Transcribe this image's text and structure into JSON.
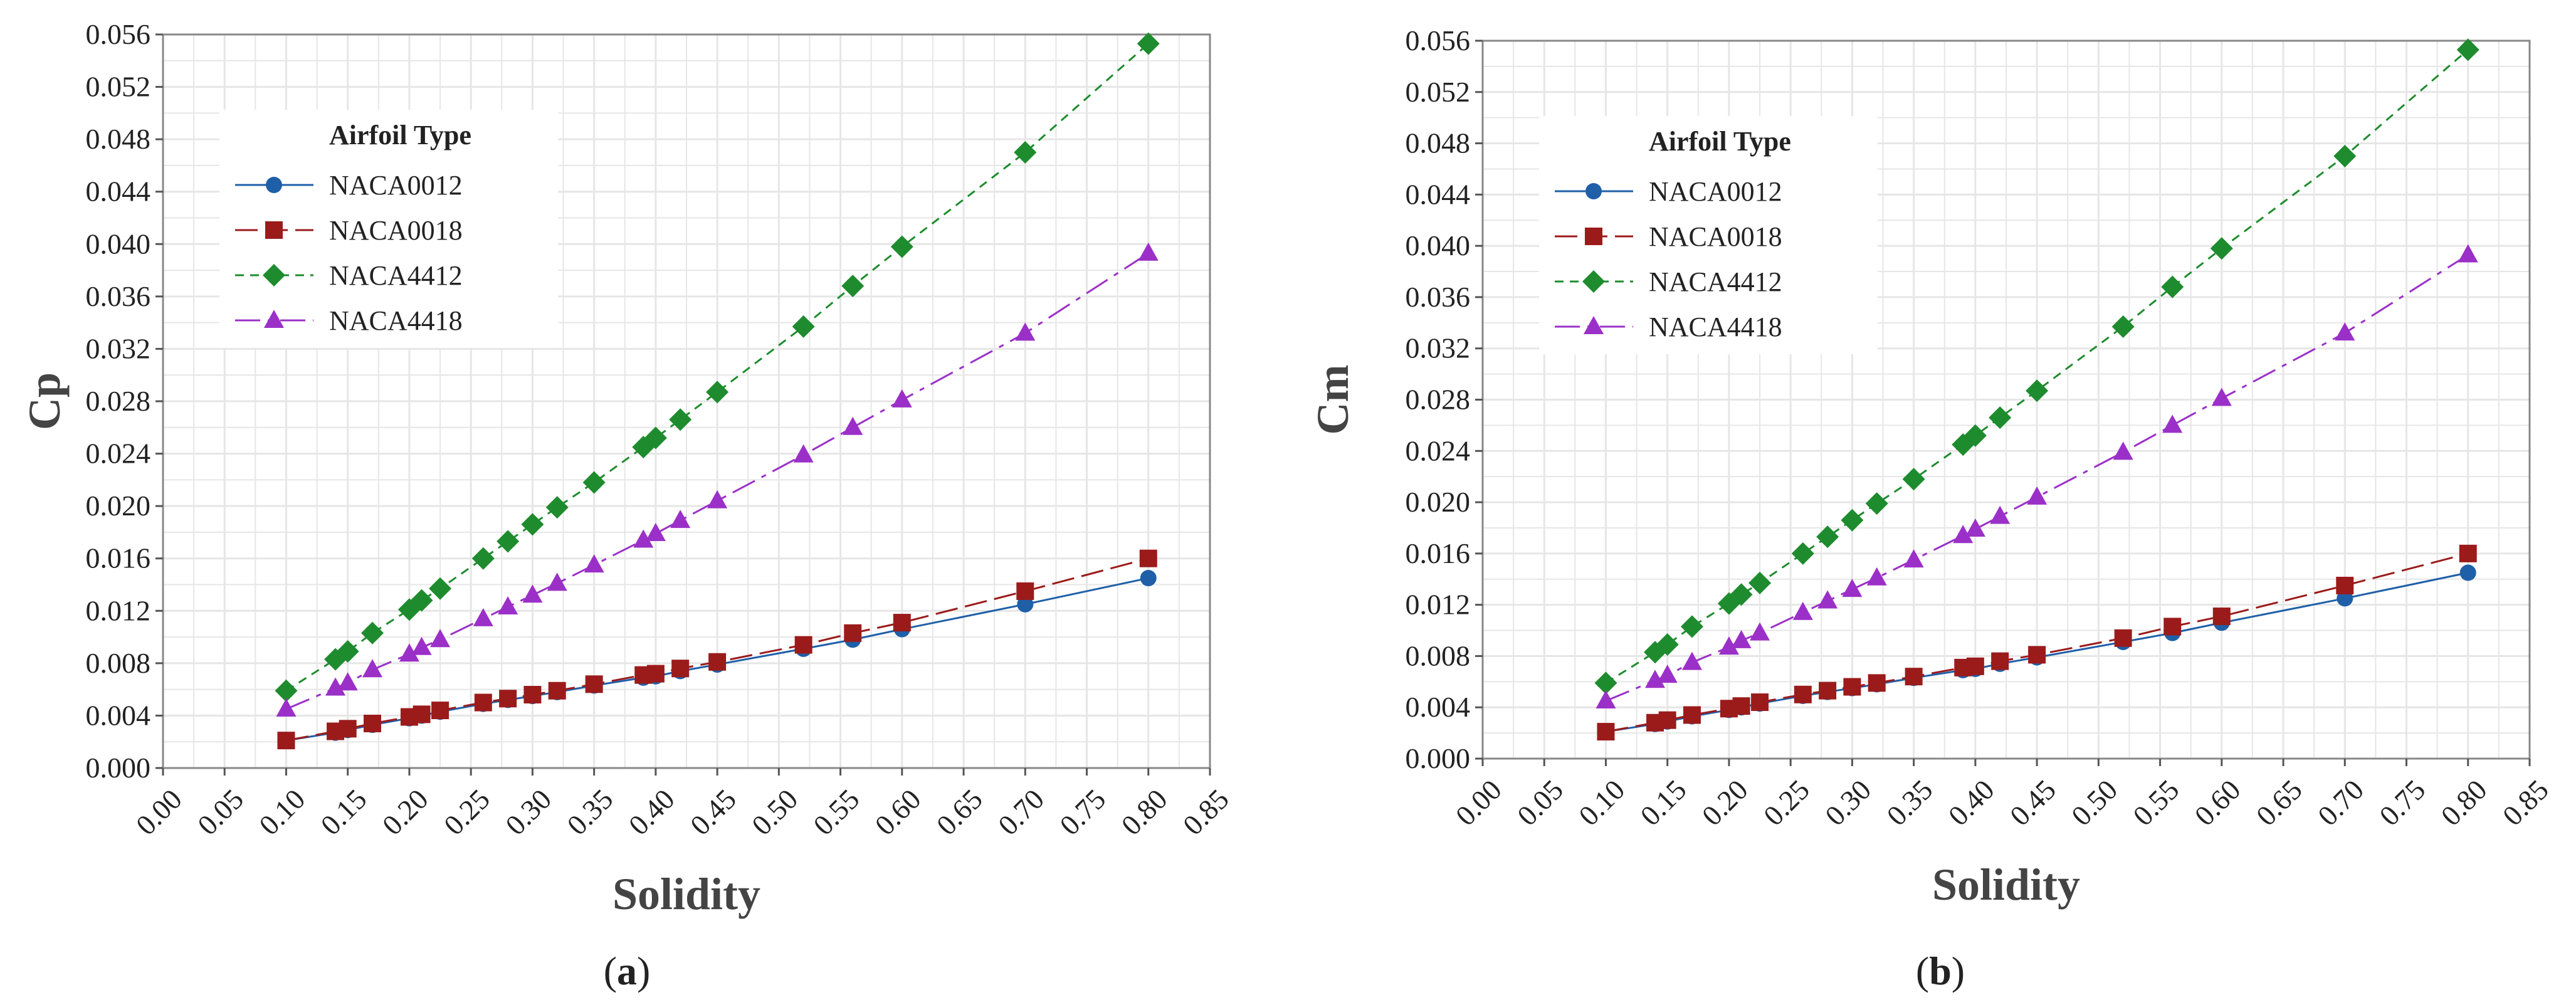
{
  "colors": {
    "NACA0012": "#1f5fa8",
    "NACA0018": "#9b1b1b",
    "NACA4412": "#1e8c2e",
    "NACA4418": "#9b30c8",
    "grid": "#e6e6e6",
    "frame": "#888888"
  },
  "chart_data": [
    {
      "type": "line",
      "panel": "a",
      "xlabel": "Solidity",
      "ylabel": "Cp",
      "xlim": [
        0.0,
        0.85
      ],
      "ylim": [
        0.0,
        0.056
      ],
      "grid": true,
      "legend_title": "Airfoil Type",
      "legend_position": "top-left",
      "x_ticks": [
        "0.00",
        "0.05",
        "0.10",
        "0.15",
        "0.20",
        "0.25",
        "0.30",
        "0.35",
        "0.40",
        "0.45",
        "0.50",
        "0.55",
        "0.60",
        "0.65",
        "0.70",
        "0.75",
        "0.80",
        "0.85"
      ],
      "y_ticks": [
        "0.000",
        "0.004",
        "0.008",
        "0.012",
        "0.016",
        "0.020",
        "0.024",
        "0.028",
        "0.032",
        "0.036",
        "0.040",
        "0.044",
        "0.048",
        "0.052",
        "0.056"
      ],
      "series": [
        {
          "name": "NACA0012",
          "marker": "circle",
          "dash": "solid",
          "x": [
            0.1,
            0.14,
            0.15,
            0.17,
            0.2,
            0.21,
            0.225,
            0.26,
            0.28,
            0.3,
            0.32,
            0.35,
            0.39,
            0.4,
            0.42,
            0.45,
            0.52,
            0.56,
            0.6,
            0.7,
            0.8
          ],
          "y": [
            0.0021,
            0.0027,
            0.0029,
            0.0033,
            0.0038,
            0.004,
            0.0043,
            0.0049,
            0.0052,
            0.0055,
            0.0058,
            0.0063,
            0.0069,
            0.007,
            0.0074,
            0.0079,
            0.0091,
            0.0098,
            0.0106,
            0.0125,
            0.0145
          ]
        },
        {
          "name": "NACA0018",
          "marker": "square",
          "dash": "longdash",
          "x": [
            0.1,
            0.14,
            0.15,
            0.17,
            0.2,
            0.21,
            0.225,
            0.26,
            0.28,
            0.3,
            0.32,
            0.35,
            0.39,
            0.4,
            0.42,
            0.45,
            0.52,
            0.56,
            0.6,
            0.7,
            0.8
          ],
          "y": [
            0.0021,
            0.0028,
            0.003,
            0.0034,
            0.0039,
            0.0041,
            0.0044,
            0.005,
            0.0053,
            0.0056,
            0.0059,
            0.0064,
            0.0071,
            0.0072,
            0.0076,
            0.0081,
            0.0094,
            0.0103,
            0.0111,
            0.0135,
            0.016
          ]
        },
        {
          "name": "NACA4412",
          "marker": "diamond",
          "dash": "dashed",
          "x": [
            0.1,
            0.14,
            0.15,
            0.17,
            0.2,
            0.21,
            0.225,
            0.26,
            0.28,
            0.3,
            0.32,
            0.35,
            0.39,
            0.4,
            0.42,
            0.45,
            0.52,
            0.56,
            0.6,
            0.7,
            0.8
          ],
          "y": [
            0.0059,
            0.0083,
            0.0089,
            0.0103,
            0.0121,
            0.0128,
            0.0137,
            0.016,
            0.0173,
            0.0186,
            0.0199,
            0.0218,
            0.0245,
            0.0252,
            0.0266,
            0.0287,
            0.0337,
            0.0368,
            0.0398,
            0.047,
            0.0553
          ]
        },
        {
          "name": "NACA4418",
          "marker": "triangle",
          "dash": "dashdot",
          "x": [
            0.1,
            0.14,
            0.15,
            0.17,
            0.2,
            0.21,
            0.225,
            0.26,
            0.28,
            0.3,
            0.32,
            0.35,
            0.39,
            0.4,
            0.42,
            0.45,
            0.52,
            0.56,
            0.6,
            0.7,
            0.8
          ],
          "y": [
            0.0045,
            0.0061,
            0.0065,
            0.0075,
            0.0087,
            0.0092,
            0.0098,
            0.0114,
            0.0123,
            0.0132,
            0.0141,
            0.0155,
            0.0174,
            0.0179,
            0.0189,
            0.0204,
            0.0239,
            0.026,
            0.0281,
            0.0332,
            0.0393
          ]
        }
      ]
    },
    {
      "type": "line",
      "panel": "b",
      "xlabel": "Solidity",
      "ylabel": "Cm",
      "xlim": [
        0.0,
        0.85
      ],
      "ylim": [
        0.0,
        0.056
      ],
      "grid": true,
      "legend_title": "Airfoil Type",
      "legend_position": "top-left",
      "x_ticks": [
        "0.00",
        "0.05",
        "0.10",
        "0.15",
        "0.20",
        "0.25",
        "0.30",
        "0.35",
        "0.40",
        "0.45",
        "0.50",
        "0.55",
        "0.60",
        "0.65",
        "0.70",
        "0.75",
        "0.80",
        "0.85"
      ],
      "y_ticks": [
        "0.000",
        "0.004",
        "0.008",
        "0.012",
        "0.016",
        "0.020",
        "0.024",
        "0.028",
        "0.032",
        "0.036",
        "0.040",
        "0.044",
        "0.048",
        "0.052",
        "0.056"
      ],
      "series": [
        {
          "name": "NACA0012",
          "marker": "circle",
          "dash": "solid",
          "x": [
            0.1,
            0.14,
            0.15,
            0.17,
            0.2,
            0.21,
            0.225,
            0.26,
            0.28,
            0.3,
            0.32,
            0.35,
            0.39,
            0.4,
            0.42,
            0.45,
            0.52,
            0.56,
            0.6,
            0.7,
            0.8
          ],
          "y": [
            0.0021,
            0.0027,
            0.0029,
            0.0033,
            0.0038,
            0.004,
            0.0043,
            0.0049,
            0.0052,
            0.0055,
            0.0058,
            0.0063,
            0.0069,
            0.007,
            0.0074,
            0.0079,
            0.0091,
            0.0098,
            0.0106,
            0.0125,
            0.0145
          ]
        },
        {
          "name": "NACA0018",
          "marker": "square",
          "dash": "longdash",
          "x": [
            0.1,
            0.14,
            0.15,
            0.17,
            0.2,
            0.21,
            0.225,
            0.26,
            0.28,
            0.3,
            0.32,
            0.35,
            0.39,
            0.4,
            0.42,
            0.45,
            0.52,
            0.56,
            0.6,
            0.7,
            0.8
          ],
          "y": [
            0.0021,
            0.0028,
            0.003,
            0.0034,
            0.0039,
            0.0041,
            0.0044,
            0.005,
            0.0053,
            0.0056,
            0.0059,
            0.0064,
            0.0071,
            0.0072,
            0.0076,
            0.0081,
            0.0094,
            0.0103,
            0.0111,
            0.0135,
            0.016
          ]
        },
        {
          "name": "NACA4412",
          "marker": "diamond",
          "dash": "dashed",
          "x": [
            0.1,
            0.14,
            0.15,
            0.17,
            0.2,
            0.21,
            0.225,
            0.26,
            0.28,
            0.3,
            0.32,
            0.35,
            0.39,
            0.4,
            0.42,
            0.45,
            0.52,
            0.56,
            0.6,
            0.7,
            0.8
          ],
          "y": [
            0.0059,
            0.0083,
            0.0089,
            0.0103,
            0.0121,
            0.0128,
            0.0137,
            0.016,
            0.0173,
            0.0186,
            0.0199,
            0.0218,
            0.0245,
            0.0252,
            0.0266,
            0.0287,
            0.0337,
            0.0368,
            0.0398,
            0.047,
            0.0553
          ]
        },
        {
          "name": "NACA4418",
          "marker": "triangle",
          "dash": "dashdot",
          "x": [
            0.1,
            0.14,
            0.15,
            0.17,
            0.2,
            0.21,
            0.225,
            0.26,
            0.28,
            0.3,
            0.32,
            0.35,
            0.39,
            0.4,
            0.42,
            0.45,
            0.52,
            0.56,
            0.6,
            0.7,
            0.8
          ],
          "y": [
            0.0045,
            0.0061,
            0.0065,
            0.0075,
            0.0087,
            0.0092,
            0.0098,
            0.0114,
            0.0123,
            0.0132,
            0.0141,
            0.0155,
            0.0174,
            0.0179,
            0.0189,
            0.0204,
            0.0239,
            0.026,
            0.0281,
            0.0332,
            0.0393
          ]
        }
      ]
    }
  ],
  "captions": [
    {
      "open": "(",
      "letter": "a",
      "close": ")"
    },
    {
      "open": "(",
      "letter": "b",
      "close": ")"
    }
  ]
}
